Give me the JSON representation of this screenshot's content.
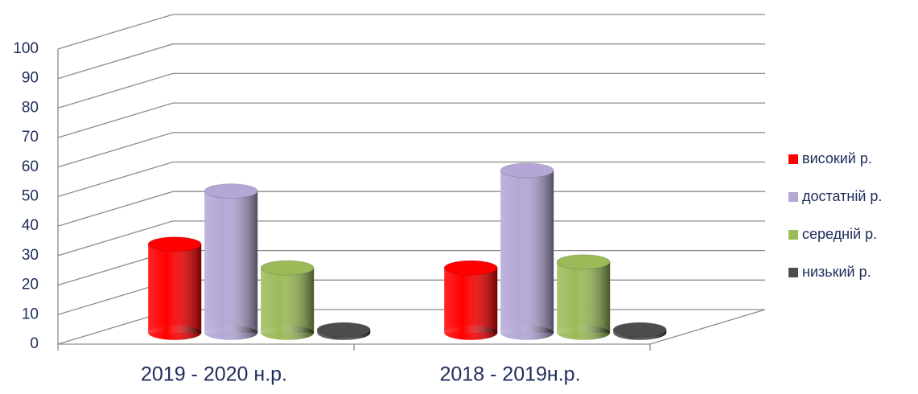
{
  "chart_data": {
    "type": "cylinder",
    "categories": [
      "2019 - 2020 н.р.",
      "2018 - 2019н.р."
    ],
    "series": [
      {
        "name": "високий р.",
        "color": "#ff0000",
        "values": [
          30,
          22
        ]
      },
      {
        "name": "достатній р.",
        "color": "#b4a7d6",
        "values": [
          48,
          55
        ]
      },
      {
        "name": "середній р.",
        "color": "#9bbb59",
        "values": [
          22,
          24
        ]
      },
      {
        "name": "низький р.",
        "color": "#4d4d4d",
        "values": [
          1,
          1
        ]
      }
    ],
    "ylim": [
      0,
      100
    ],
    "yticks": [
      0,
      10,
      20,
      30,
      40,
      50,
      60,
      70,
      80,
      90,
      100
    ],
    "grid": true,
    "legend": "right"
  }
}
